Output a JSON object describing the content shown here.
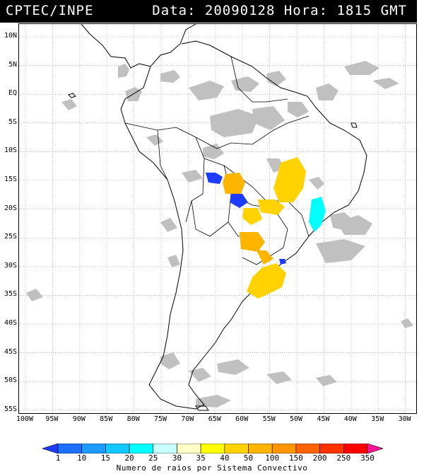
{
  "header": {
    "source": "CPTEC/INPE",
    "datetime": "Data: 20090128 Hora: 1815 GMT"
  },
  "map": {
    "lat_ticks": [
      "10N",
      "5N",
      "EQ",
      "5S",
      "10S",
      "15S",
      "20S",
      "25S",
      "30S",
      "35S",
      "40S",
      "45S",
      "50S",
      "55S"
    ],
    "lon_ticks": [
      "100W",
      "95W",
      "90W",
      "85W",
      "80W",
      "75W",
      "70W",
      "65W",
      "60W",
      "55W",
      "50W",
      "45W",
      "40W",
      "35W",
      "30W"
    ],
    "colors": {
      "land_outline": "#000000",
      "cloud": "#c0c0c0",
      "gridline": "#9a9a9a"
    }
  },
  "colorbar": {
    "labels": [
      "1",
      "10",
      "15",
      "20",
      "25",
      "30",
      "35",
      "40",
      "50",
      "100",
      "150",
      "200",
      "250",
      "350"
    ],
    "colors": [
      "#1e3cff",
      "#1e6eff",
      "#1e9bff",
      "#14c8ff",
      "#00ffff",
      "#c8ffff",
      "#ffffc8",
      "#ffff00",
      "#ffd200",
      "#ffb400",
      "#ff9600",
      "#ff6400",
      "#ff3200",
      "#ff0000",
      "#ff1493"
    ],
    "caption": "Numero de raios por Sistema Convectivo"
  }
}
